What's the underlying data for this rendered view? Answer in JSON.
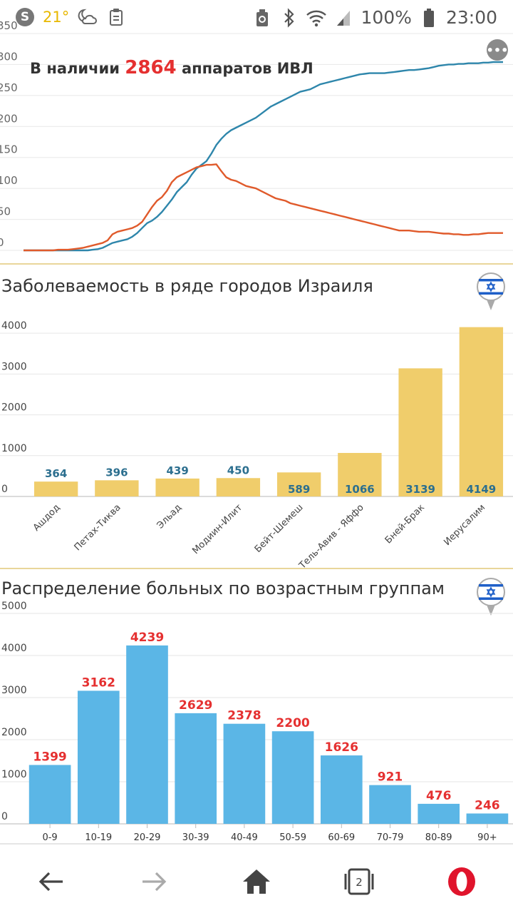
{
  "status_bar": {
    "skype_letter": "S",
    "temperature": "21°",
    "battery_percent": "100%",
    "time": "23:00",
    "icons": [
      "skype-icon",
      "weather-night-cloud-icon",
      "clipboard-icon",
      "recycle-icon",
      "bluetooth-icon",
      "wifi-icon",
      "signal-icon",
      "battery-icon"
    ]
  },
  "ventilators": {
    "label_prefix": "В наличии",
    "count": "2864",
    "label_suffix": "аппаратов ИВЛ",
    "more_label": "•••",
    "chart_data": {
      "type": "line",
      "y_tick_labels": [
        "0",
        "50",
        "100",
        "150",
        "200",
        "250",
        "300",
        "350"
      ],
      "ylim": [
        0,
        350
      ],
      "grid": true,
      "series": [
        {
          "color": "#2e86ab",
          "values": [
            0,
            0,
            0,
            0,
            0,
            0,
            0,
            0,
            0,
            0,
            0,
            0,
            0,
            0,
            1,
            2,
            4,
            8,
            12,
            14,
            16,
            18,
            22,
            28,
            36,
            44,
            48,
            54,
            62,
            72,
            82,
            94,
            102,
            110,
            122,
            132,
            138,
            144,
            156,
            170,
            180,
            188,
            194,
            198,
            202,
            206,
            210,
            214,
            220,
            226,
            232,
            236,
            240,
            244,
            248,
            252,
            256,
            258,
            260,
            264,
            268,
            270,
            272,
            274,
            276,
            278,
            280,
            282,
            284,
            285,
            286,
            286,
            286,
            286,
            287,
            288,
            289,
            290,
            291,
            291,
            292,
            293,
            294,
            296,
            298,
            299,
            300,
            300,
            301,
            301,
            302,
            302,
            302,
            303,
            303,
            304,
            304,
            304
          ]
        },
        {
          "color": "#e05a2b",
          "values": [
            0,
            0,
            0,
            0,
            0,
            0,
            0,
            1,
            1,
            1,
            2,
            3,
            4,
            6,
            8,
            10,
            12,
            16,
            26,
            30,
            32,
            34,
            36,
            40,
            46,
            58,
            70,
            80,
            86,
            96,
            110,
            118,
            122,
            126,
            130,
            134,
            136,
            138,
            138,
            139,
            128,
            118,
            114,
            112,
            108,
            104,
            102,
            100,
            96,
            92,
            88,
            84,
            82,
            80,
            76,
            74,
            72,
            70,
            68,
            66,
            64,
            62,
            60,
            58,
            56,
            54,
            52,
            50,
            48,
            46,
            44,
            42,
            40,
            38,
            36,
            34,
            32,
            32,
            32,
            31,
            30,
            30,
            30,
            29,
            28,
            27,
            27,
            26,
            26,
            25,
            25,
            26,
            26,
            27,
            28,
            28,
            28,
            28
          ]
        }
      ]
    }
  },
  "cities": {
    "title": "Заболеваемость в ряде городов Израиля",
    "chart_data": {
      "type": "bar",
      "categories": [
        "Ашдод",
        "Петах-Тиква",
        "Эльад",
        "Модиин-Илит",
        "Бейт-Шемеш",
        "Тель-Авив - Яффо",
        "Бней-Брак",
        "Иерусалим"
      ],
      "values": [
        364,
        396,
        439,
        450,
        589,
        1066,
        3139,
        4149
      ],
      "data_labels": [
        "364",
        "396",
        "439",
        "450",
        "589",
        "1066",
        "3139",
        "4149"
      ],
      "y_tick_labels": [
        "0",
        "1000",
        "2000",
        "3000",
        "4000"
      ],
      "ylim": [
        0,
        4300
      ],
      "bar_color": "#f0cd6b",
      "label_color": "#2c6f8f",
      "grid": true
    }
  },
  "ages": {
    "title": "Распределение больных по возрастным группам",
    "chart_data": {
      "type": "bar",
      "categories": [
        "0-9",
        "10-19",
        "20-29",
        "30-39",
        "40-49",
        "50-59",
        "60-69",
        "70-79",
        "80-89",
        "90+"
      ],
      "values": [
        1399,
        3162,
        4239,
        2629,
        2378,
        2200,
        1626,
        921,
        476,
        246
      ],
      "data_labels": [
        "1399",
        "3162",
        "4239",
        "2629",
        "2378",
        "2200",
        "1626",
        "921",
        "476",
        "246"
      ],
      "y_tick_labels": [
        "0",
        "1000",
        "2000",
        "3000",
        "4000",
        "5000"
      ],
      "ylim": [
        0,
        5000
      ],
      "bar_color": "#5bb6e6",
      "label_color": "#e53030",
      "grid": true
    }
  },
  "flag_colors": {
    "blue": "#1e5fc8",
    "pin_border": "#aaaaaa"
  },
  "nav": {
    "tab_count": "2",
    "icons": [
      "back-arrow-icon",
      "forward-arrow-icon",
      "home-icon",
      "tabs-icon",
      "opera-icon"
    ]
  }
}
